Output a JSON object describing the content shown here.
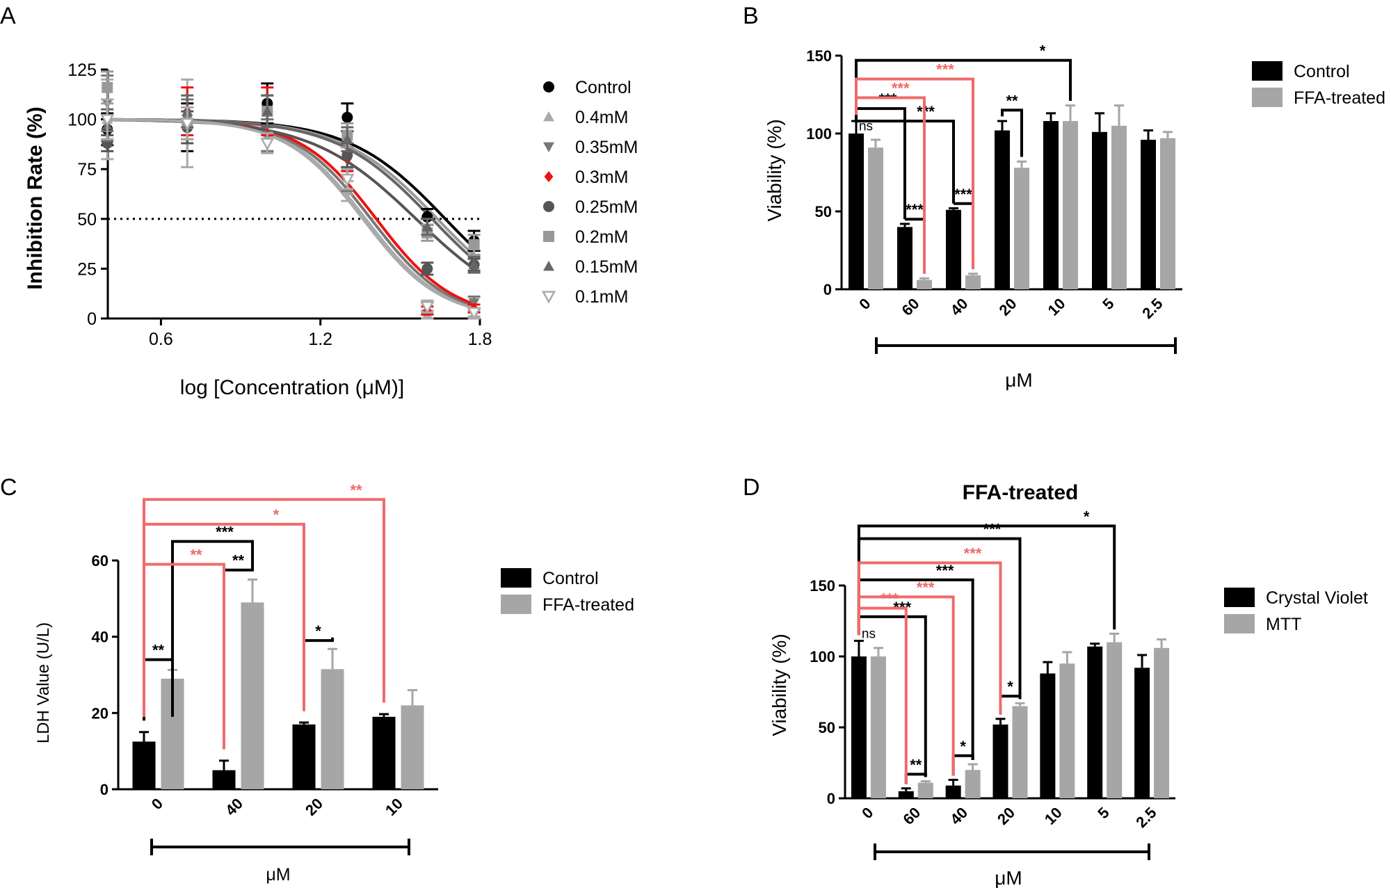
{
  "panels": {
    "a": "A",
    "b": "B",
    "c": "C",
    "d": "D"
  },
  "chart_data": [
    {
      "id": "A",
      "type": "scatter",
      "title": "",
      "xlabel": "log [Concentration (μM)]",
      "ylabel": "Inhibition Rate (%)",
      "xlim": [
        0.4,
        1.8
      ],
      "ylim": [
        0,
        125
      ],
      "xticks": [
        "0.6",
        "1.2",
        "1.8"
      ],
      "xtick_values": [
        0.6,
        1.2,
        1.8
      ],
      "yticks": [
        "0",
        "25",
        "50",
        "75",
        "100",
        "125"
      ],
      "ytick_values": [
        0,
        25,
        50,
        75,
        100,
        125
      ],
      "reference_line": 50,
      "x": [
        0.398,
        0.699,
        1.0,
        1.301,
        1.602,
        1.778
      ],
      "series": [
        {
          "name": "Control",
          "color": "#000000",
          "marker": "circle",
          "values": [
            95,
            96,
            108,
            101,
            51,
            39
          ],
          "errors": [
            8,
            12,
            10,
            7,
            4,
            5
          ],
          "logIC50": 1.67,
          "hill": 2.4
        },
        {
          "name": "0.4mM",
          "color": "#aaaaaa",
          "marker": "triangle-up",
          "values": [
            100,
            98,
            92,
            64,
            2,
            2
          ],
          "errors": [
            20,
            22,
            8,
            5,
            2,
            2
          ],
          "logIC50": 1.37,
          "hill": 3.0
        },
        {
          "name": "0.35mM",
          "color": "#777777",
          "marker": "triangle-down",
          "values": [
            108,
            100,
            92,
            70,
            5,
            8
          ],
          "errors": [
            14,
            10,
            8,
            6,
            3,
            3
          ],
          "logIC50": 1.39,
          "hill": 3.0
        },
        {
          "name": "0.3mM",
          "color": "#ee1111",
          "marker": "diamond",
          "values": [
            100,
            104,
            104,
            80,
            4,
            5
          ],
          "errors": [
            10,
            12,
            12,
            6,
            2,
            2
          ],
          "logIC50": 1.41,
          "hill": 3.0
        },
        {
          "name": "0.25mM",
          "color": "#555555",
          "marker": "circle",
          "values": [
            88,
            96,
            104,
            82,
            25,
            27
          ],
          "errors": [
            4,
            8,
            8,
            6,
            3,
            3
          ],
          "logIC50": 1.56,
          "hill": 2.2
        },
        {
          "name": "0.2mM",
          "color": "#999999",
          "marker": "square",
          "values": [
            116,
            98,
            104,
            92,
            43,
            37
          ],
          "errors": [
            8,
            8,
            8,
            6,
            4,
            5
          ],
          "logIC50": 1.64,
          "hill": 2.4
        },
        {
          "name": "0.15mM",
          "color": "#666666",
          "marker": "triangle-up",
          "values": [
            97,
            104,
            104,
            90,
            46,
            27
          ],
          "errors": [
            8,
            8,
            8,
            6,
            4,
            4
          ],
          "logIC50": 1.62,
          "hill": 2.4
        },
        {
          "name": "0.1mM",
          "color": "#aaaaaa",
          "marker": "triangle-down-open",
          "values": [
            100,
            98,
            88,
            70,
            6,
            3
          ],
          "errors": [
            10,
            8,
            5,
            5,
            3,
            2
          ],
          "logIC50": 1.36,
          "hill": 3.0
        }
      ]
    },
    {
      "id": "B",
      "type": "bar",
      "title": "",
      "xlabel": "μM",
      "ylabel": "Viability (%)",
      "ylim": [
        0,
        150
      ],
      "yticks": [
        "0",
        "50",
        "100",
        "150"
      ],
      "ytick_values": [
        0,
        50,
        100,
        150
      ],
      "categories": [
        "0",
        "60",
        "40",
        "20",
        "10",
        "5",
        "2.5"
      ],
      "series": [
        {
          "name": "Control",
          "color": "#000000",
          "values": [
            100,
            40,
            51,
            102,
            108,
            101,
            96
          ],
          "errors": [
            8,
            2,
            1,
            6,
            5,
            12,
            6
          ]
        },
        {
          "name": "FFA-treated",
          "color": "#a6a6a6",
          "values": [
            91,
            6,
            9,
            78,
            108,
            105,
            97
          ],
          "errors": [
            5,
            1,
            1,
            4,
            10,
            13,
            4
          ]
        }
      ],
      "annotations": [
        {
          "label": "ns",
          "kind": "ns",
          "from": [
            0,
            0
          ],
          "to": [
            0,
            1
          ],
          "y": 102,
          "color": "#000000"
        },
        {
          "label": "***",
          "kind": "pair",
          "from": [
            1,
            0
          ],
          "to": [
            1,
            1
          ],
          "y": 45,
          "color": "#000000"
        },
        {
          "label": "***",
          "kind": "pair",
          "from": [
            2,
            0
          ],
          "to": [
            2,
            1
          ],
          "y": 55,
          "color": "#000000"
        },
        {
          "label": "**",
          "kind": "pair",
          "from": [
            3,
            0
          ],
          "to": [
            3,
            1
          ],
          "y": 115,
          "color": "#000000"
        },
        {
          "label": "***",
          "kind": "bracket",
          "from": [
            0,
            0
          ],
          "to": [
            1,
            0
          ],
          "y": 116,
          "color": "#000000"
        },
        {
          "label": "***",
          "kind": "bracket",
          "from": [
            0,
            0
          ],
          "to": [
            2,
            0
          ],
          "y": 108,
          "color": "#000000"
        },
        {
          "label": "*",
          "kind": "bracket",
          "from": [
            0,
            0
          ],
          "to": [
            4,
            1
          ],
          "y": 147,
          "color": "#000000"
        },
        {
          "label": "***",
          "kind": "bracket",
          "from": [
            0,
            0
          ],
          "to": [
            1,
            1
          ],
          "y": 123,
          "color": "#f06a6a"
        },
        {
          "label": "***",
          "kind": "bracket",
          "from": [
            0,
            0
          ],
          "to": [
            2,
            1
          ],
          "y": 135,
          "color": "#f06a6a"
        }
      ],
      "legend": "right"
    },
    {
      "id": "C",
      "type": "bar",
      "title": "",
      "xlabel": "μM",
      "ylabel": "LDH Value  (U/L)",
      "ylim": [
        0,
        60
      ],
      "yticks": [
        "0",
        "20",
        "40",
        "60"
      ],
      "ytick_values": [
        0,
        20,
        40,
        60
      ],
      "categories": [
        "0",
        "40",
        "20",
        "10"
      ],
      "series": [
        {
          "name": "Control",
          "color": "#000000",
          "values": [
            12.5,
            5,
            17,
            19
          ],
          "errors": [
            2.5,
            2.5,
            0.5,
            0.7
          ]
        },
        {
          "name": "FFA-treated",
          "color": "#a6a6a6",
          "values": [
            29,
            49,
            31.5,
            22
          ],
          "errors": [
            2.3,
            6,
            5.3,
            4
          ]
        }
      ],
      "annotations": [
        {
          "label": "**",
          "kind": "pair",
          "from": [
            0,
            0
          ],
          "to": [
            0,
            1
          ],
          "y": 34,
          "color": "#000000"
        },
        {
          "label": "**",
          "kind": "pair",
          "from": [
            1,
            0
          ],
          "to": [
            1,
            1
          ],
          "y": 57.5,
          "color": "#000000"
        },
        {
          "label": "*",
          "kind": "pair",
          "from": [
            2,
            0
          ],
          "to": [
            2,
            1
          ],
          "y": 39,
          "color": "#000000"
        },
        {
          "label": "***",
          "kind": "bracket",
          "from": [
            0,
            1
          ],
          "to": [
            1,
            1
          ],
          "y": 65,
          "color": "#000000"
        },
        {
          "label": "**",
          "kind": "bracket",
          "from": [
            0,
            0
          ],
          "to": [
            1,
            0
          ],
          "y": 59,
          "color": "#f06a6a"
        },
        {
          "label": "*",
          "kind": "bracket",
          "from": [
            0,
            0
          ],
          "to": [
            2,
            0
          ],
          "y": 69.5,
          "color": "#f06a6a"
        },
        {
          "label": "**",
          "kind": "bracket",
          "from": [
            0,
            0
          ],
          "to": [
            3,
            0
          ],
          "y": 76,
          "color": "#f06a6a"
        }
      ],
      "legend": "right"
    },
    {
      "id": "D",
      "type": "bar",
      "title": "FFA-treated",
      "xlabel": "μM",
      "ylabel": "Viability (%)",
      "ylim": [
        0,
        150
      ],
      "yticks": [
        "0",
        "50",
        "100",
        "150"
      ],
      "ytick_values": [
        0,
        50,
        100,
        150
      ],
      "categories": [
        "0",
        "60",
        "40",
        "20",
        "10",
        "5",
        "2.5"
      ],
      "series": [
        {
          "name": "Crystal Violet",
          "color": "#000000",
          "values": [
            100,
            5,
            9,
            52,
            88,
            107,
            92
          ],
          "errors": [
            11,
            2,
            4,
            4,
            8,
            2,
            9
          ]
        },
        {
          "name": "MTT",
          "color": "#a6a6a6",
          "values": [
            100,
            11,
            20,
            65,
            95,
            110,
            106
          ],
          "errors": [
            6,
            1,
            4,
            2,
            8,
            6,
            6
          ]
        }
      ],
      "annotations": [
        {
          "label": "ns",
          "kind": "ns",
          "from": [
            0,
            0
          ],
          "to": [
            0,
            1
          ],
          "y": 113,
          "color": "#000000"
        },
        {
          "label": "**",
          "kind": "pair",
          "from": [
            1,
            0
          ],
          "to": [
            1,
            1
          ],
          "y": 17,
          "color": "#000000"
        },
        {
          "label": "*",
          "kind": "pair",
          "from": [
            2,
            0
          ],
          "to": [
            2,
            1
          ],
          "y": 30,
          "color": "#000000"
        },
        {
          "label": "*",
          "kind": "pair",
          "from": [
            3,
            0
          ],
          "to": [
            3,
            1
          ],
          "y": 72,
          "color": "#000000"
        },
        {
          "label": "***",
          "kind": "bracket",
          "from": [
            0,
            0
          ],
          "to": [
            1,
            1
          ],
          "y": 128,
          "color": "#000000"
        },
        {
          "label": "***",
          "kind": "bracket",
          "from": [
            0,
            0
          ],
          "to": [
            2,
            1
          ],
          "y": 154,
          "color": "#000000"
        },
        {
          "label": "***",
          "kind": "bracket",
          "from": [
            0,
            0
          ],
          "to": [
            3,
            1
          ],
          "y": 183,
          "color": "#000000"
        },
        {
          "label": "*",
          "kind": "bracket",
          "from": [
            0,
            0
          ],
          "to": [
            5,
            1
          ],
          "y": 192,
          "color": "#000000"
        },
        {
          "label": "***",
          "kind": "bracket",
          "from": [
            0,
            0
          ],
          "to": [
            1,
            0
          ],
          "y": 134,
          "color": "#f06a6a"
        },
        {
          "label": "***",
          "kind": "bracket",
          "from": [
            0,
            0
          ],
          "to": [
            2,
            0
          ],
          "y": 142,
          "color": "#f06a6a"
        },
        {
          "label": "***",
          "kind": "bracket",
          "from": [
            0,
            0
          ],
          "to": [
            3,
            0
          ],
          "y": 166,
          "color": "#f06a6a"
        }
      ],
      "legend": "right"
    }
  ]
}
